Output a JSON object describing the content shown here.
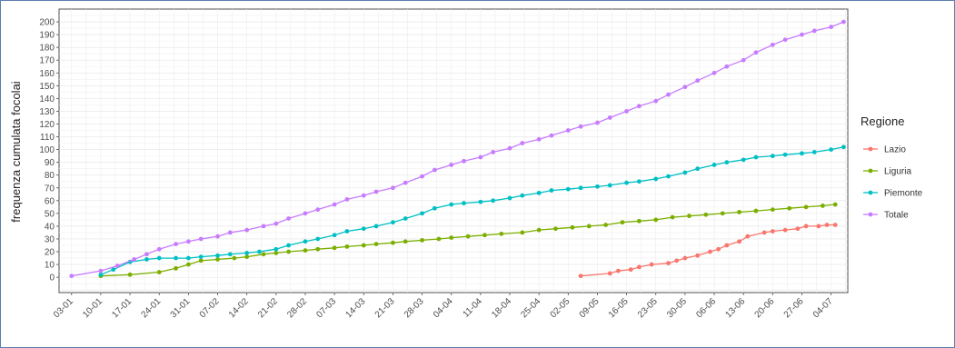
{
  "chart_data": {
    "type": "line",
    "title": "",
    "xlabel": "",
    "ylabel": "frequenza cumulata focolai",
    "x_tick_labels": [
      "03-01",
      "10-01",
      "17-01",
      "24-01",
      "31-01",
      "07-02",
      "14-02",
      "21-02",
      "28-02",
      "07-03",
      "14-03",
      "21-03",
      "28-03",
      "04-04",
      "11-04",
      "18-04",
      "25-04",
      "02-05",
      "09-05",
      "16-05",
      "23-05",
      "30-05",
      "06-06",
      "13-06",
      "20-06",
      "27-06",
      "04-07"
    ],
    "y_ticks": [
      0,
      10,
      20,
      30,
      40,
      50,
      60,
      70,
      80,
      90,
      100,
      110,
      120,
      130,
      140,
      150,
      160,
      170,
      180,
      190,
      200
    ],
    "x_range_days": [
      -3,
      186
    ],
    "ylim": [
      -12,
      210
    ],
    "grid": true,
    "legend": {
      "title": "Regione",
      "position": "right"
    },
    "series": [
      {
        "name": "Lazio",
        "color": "#F8766D",
        "x": [
          122,
          129,
          131,
          134,
          136,
          139,
          143,
          145,
          147,
          150,
          153,
          155,
          157,
          160,
          162,
          166,
          168,
          171,
          174,
          176,
          179,
          181,
          183
        ],
        "y": [
          1,
          3,
          5,
          6,
          8,
          10,
          11,
          13,
          15,
          17,
          20,
          22,
          25,
          28,
          32,
          35,
          36,
          37,
          38,
          40,
          40,
          41,
          41
        ]
      },
      {
        "name": "Liguria",
        "color": "#7CAE00",
        "x": [
          7,
          14,
          21,
          25,
          28,
          31,
          35,
          39,
          42,
          46,
          49,
          52,
          56,
          59,
          63,
          66,
          70,
          73,
          77,
          80,
          84,
          88,
          91,
          95,
          99,
          103,
          108,
          112,
          116,
          120,
          124,
          128,
          132,
          136,
          140,
          144,
          148,
          152,
          156,
          160,
          164,
          168,
          172,
          176,
          180,
          183
        ],
        "y": [
          1,
          2,
          4,
          7,
          10,
          13,
          14,
          15,
          16,
          18,
          19,
          20,
          21,
          22,
          23,
          24,
          25,
          26,
          27,
          28,
          29,
          30,
          31,
          32,
          33,
          34,
          35,
          37,
          38,
          39,
          40,
          41,
          43,
          44,
          45,
          47,
          48,
          49,
          50,
          51,
          52,
          53,
          54,
          55,
          56,
          57
        ]
      },
      {
        "name": "Piemonte",
        "color": "#00BFC4",
        "x": [
          7,
          10,
          14,
          18,
          21,
          25,
          28,
          31,
          35,
          38,
          42,
          45,
          49,
          52,
          56,
          59,
          63,
          66,
          70,
          73,
          77,
          80,
          84,
          87,
          91,
          94,
          98,
          101,
          105,
          108,
          112,
          115,
          119,
          122,
          126,
          129,
          133,
          136,
          140,
          143,
          147,
          150,
          154,
          157,
          161,
          164,
          168,
          171,
          175,
          178,
          182,
          185
        ],
        "y": [
          2,
          6,
          12,
          14,
          15,
          15,
          15,
          16,
          17,
          18,
          19,
          20,
          22,
          25,
          28,
          30,
          33,
          36,
          38,
          40,
          43,
          46,
          50,
          54,
          57,
          58,
          59,
          60,
          62,
          64,
          66,
          68,
          69,
          70,
          71,
          72,
          74,
          75,
          77,
          79,
          82,
          85,
          88,
          90,
          92,
          94,
          95,
          96,
          97,
          98,
          100,
          102
        ]
      },
      {
        "name": "Totale",
        "color": "#C77CFF",
        "x": [
          0,
          7,
          11,
          15,
          18,
          21,
          25,
          28,
          31,
          35,
          38,
          42,
          46,
          49,
          52,
          56,
          59,
          63,
          66,
          70,
          73,
          77,
          80,
          84,
          87,
          91,
          94,
          98,
          101,
          105,
          108,
          112,
          115,
          119,
          122,
          126,
          129,
          133,
          136,
          140,
          143,
          147,
          150,
          154,
          157,
          161,
          164,
          168,
          171,
          175,
          178,
          182,
          185
        ],
        "y": [
          1,
          5,
          9,
          14,
          18,
          22,
          26,
          28,
          30,
          32,
          35,
          37,
          40,
          42,
          46,
          50,
          53,
          57,
          61,
          64,
          67,
          70,
          74,
          79,
          84,
          88,
          91,
          94,
          98,
          101,
          105,
          108,
          111,
          115,
          118,
          121,
          125,
          130,
          134,
          138,
          143,
          149,
          154,
          160,
          165,
          170,
          176,
          182,
          186,
          190,
          193,
          196,
          200
        ]
      }
    ]
  }
}
